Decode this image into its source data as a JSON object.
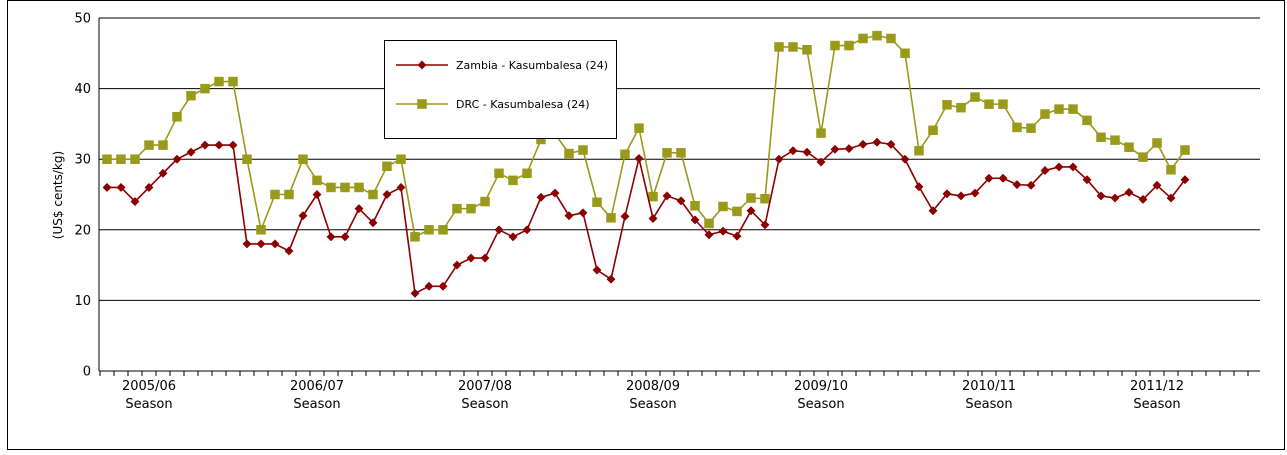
{
  "chart_data": {
    "type": "line",
    "title": "",
    "ylabel": "(US$ cents/kg)",
    "ylim": [
      0,
      50
    ],
    "yticks": [
      0,
      10,
      20,
      30,
      40,
      50
    ],
    "grid": true,
    "legend_position": "top-left",
    "season_labels": [
      {
        "year": "2005/06",
        "season": "Season"
      },
      {
        "year": "2006/07",
        "season": "Season"
      },
      {
        "year": "2007/08",
        "season": "Season"
      },
      {
        "year": "2008/09",
        "season": "Season"
      },
      {
        "year": "2009/10",
        "season": "Season"
      },
      {
        "year": "2010/11",
        "season": "Season"
      },
      {
        "year": "2011/12",
        "season": "Season"
      }
    ],
    "series": [
      {
        "name": "Zambia - Kasumbalesa (24)",
        "color": "#8B0000",
        "marker": "diamond",
        "values": [
          26,
          26,
          24,
          26,
          28,
          30,
          31,
          32,
          32,
          32,
          18,
          18,
          18,
          17,
          22,
          25,
          19,
          19,
          23,
          21,
          25,
          26,
          11,
          12,
          12,
          15,
          16,
          16,
          20,
          19,
          20,
          24.6,
          25.2,
          22,
          22.4,
          14.3,
          13,
          21.9,
          30.1,
          21.6,
          24.8,
          24.1,
          21.4,
          19.3,
          19.8,
          19.1,
          22.7,
          20.7,
          30,
          31.2,
          31,
          29.6,
          31.4,
          31.5,
          32.1,
          32.4,
          32.1,
          30,
          26.1,
          22.7,
          25.1,
          24.8,
          25.2,
          27.3,
          27.3,
          26.4,
          26.3,
          28.4,
          28.9,
          28.9,
          27.1,
          24.8,
          24.5,
          25.3,
          24.3,
          26.3,
          24.5,
          27.1
        ]
      },
      {
        "name": "DRC - Kasumbalesa (24)",
        "color": "#9A9A1A",
        "marker": "square",
        "values": [
          30,
          30,
          30,
          32,
          32,
          36,
          39,
          40,
          41,
          41,
          30,
          20,
          25,
          25,
          30,
          27,
          26,
          26,
          26,
          25,
          29,
          30,
          19,
          20,
          20,
          23,
          23,
          24,
          28,
          27,
          28,
          32.8,
          33.6,
          30.8,
          31.3,
          23.9,
          21.7,
          30.7,
          34.4,
          24.7,
          30.9,
          30.9,
          23.4,
          20.9,
          23.3,
          22.6,
          24.5,
          24.4,
          45.9,
          45.9,
          45.5,
          33.7,
          46.1,
          46.1,
          47.1,
          47.5,
          47.1,
          45,
          31.2,
          34.1,
          37.7,
          37.3,
          38.8,
          37.8,
          37.8,
          34.5,
          34.4,
          36.4,
          37.1,
          37.1,
          35.5,
          33.1,
          32.7,
          31.7,
          30.3,
          32.3,
          28.5,
          31.3
        ]
      }
    ]
  }
}
